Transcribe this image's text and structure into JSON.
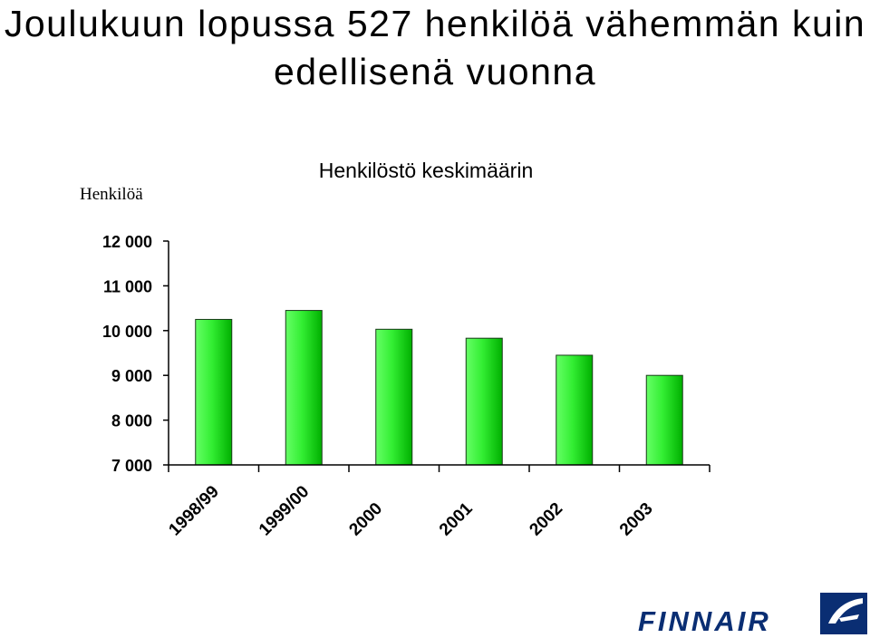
{
  "headline": "Joulukuun lopussa 527 henkilöä vähemmän kuin edellisenä vuonna",
  "logo_text": "FINNAIR",
  "colors": {
    "bar": "#00cc00",
    "bar_light": "#66ff66",
    "bar_dark": "#006600",
    "logo": "#0a2e73"
  },
  "chart_data": {
    "type": "bar",
    "title": "Henkilöstö keskimäärin",
    "ylabel": "Henkilöä",
    "xlabel": "",
    "categories": [
      "1998/99",
      "1999/00",
      "2000",
      "2001",
      "2002",
      "2003"
    ],
    "values": [
      10250,
      10450,
      10030,
      9830,
      9450,
      9000
    ],
    "ylim": [
      7000,
      12000
    ],
    "yticks": [
      "7 000",
      "8 000",
      "9 000",
      "10 000",
      "11 000",
      "12 000"
    ],
    "ytick_values": [
      7000,
      8000,
      9000,
      10000,
      11000,
      12000
    ],
    "grid": false
  }
}
